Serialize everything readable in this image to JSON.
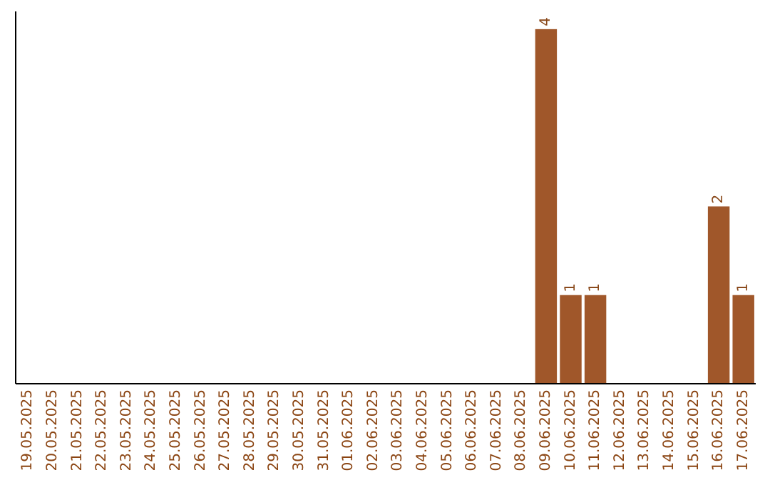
{
  "chart_data": {
    "type": "bar",
    "categories": [
      "19.05.2025",
      "20.05.2025",
      "21.05.2025",
      "22.05.2025",
      "23.05.2025",
      "24.05.2025",
      "25.05.2025",
      "26.05.2025",
      "27.05.2025",
      "28.05.2025",
      "29.05.2025",
      "30.05.2025",
      "31.05.2025",
      "01.06.2025",
      "02.06.2025",
      "03.06.2025",
      "04.06.2025",
      "05.06.2025",
      "06.06.2025",
      "07.06.2025",
      "08.06.2025",
      "09.06.2025",
      "10.06.2025",
      "11.06.2025",
      "12.06.2025",
      "13.06.2025",
      "14.06.2025",
      "15.06.2025",
      "16.06.2025",
      "17.06.2025"
    ],
    "values": [
      null,
      null,
      null,
      null,
      null,
      null,
      null,
      null,
      null,
      null,
      null,
      null,
      null,
      null,
      null,
      null,
      null,
      null,
      null,
      null,
      null,
      4,
      1,
      1,
      null,
      null,
      null,
      null,
      2,
      1
    ],
    "data_labels": true,
    "color": "#a0572a",
    "ylim": [
      0,
      4.2
    ],
    "tick_labels": "x"
  }
}
